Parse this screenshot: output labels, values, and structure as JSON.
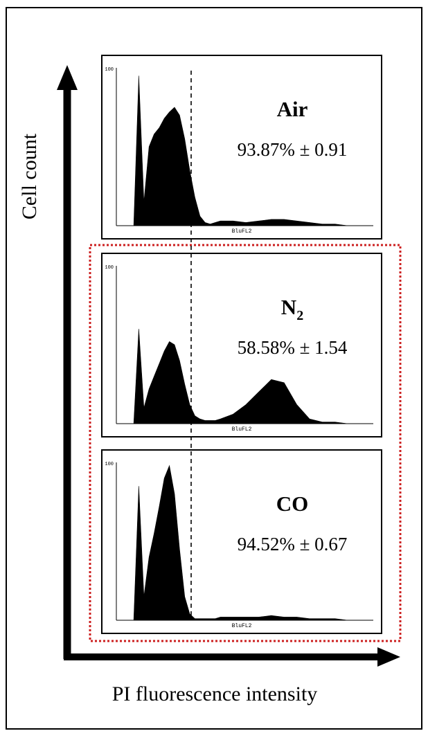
{
  "figure": {
    "y_axis_label": "Cell count",
    "x_axis_label": "PI fluorescence intensity",
    "highlight_color": "#cc1f1f",
    "axis_color": "#000000",
    "fill_color": "#000000"
  },
  "chart_data": [
    {
      "type": "area",
      "title": "Air",
      "title_sub": "",
      "stat": "93.87% ± 0.91",
      "xlabel": "BluFL2",
      "ytick": "100",
      "highlighted": false,
      "x": [
        0.0,
        0.02,
        0.04,
        0.06,
        0.08,
        0.1,
        0.12,
        0.14,
        0.16,
        0.18,
        0.2,
        0.22,
        0.24,
        0.26,
        0.28,
        0.3,
        0.32,
        0.34,
        0.36,
        0.38,
        0.4,
        0.45,
        0.5,
        0.55,
        0.6,
        0.65,
        0.7,
        0.75,
        0.8,
        0.85,
        0.9,
        0.95,
        1.0
      ],
      "y": [
        0,
        0,
        0,
        0,
        0.95,
        0.15,
        0.5,
        0.58,
        0.62,
        0.68,
        0.72,
        0.75,
        0.7,
        0.55,
        0.35,
        0.18,
        0.06,
        0.02,
        0.01,
        0.02,
        0.03,
        0.03,
        0.02,
        0.03,
        0.04,
        0.04,
        0.03,
        0.02,
        0.01,
        0.01,
        0,
        0,
        0
      ]
    },
    {
      "type": "area",
      "title": "N",
      "title_sub": "2",
      "stat": "58.58% ± 1.54",
      "xlabel": "BluFL2",
      "ytick": "100",
      "highlighted": true,
      "x": [
        0.0,
        0.02,
        0.04,
        0.06,
        0.08,
        0.1,
        0.12,
        0.14,
        0.16,
        0.18,
        0.2,
        0.22,
        0.24,
        0.26,
        0.28,
        0.3,
        0.32,
        0.34,
        0.36,
        0.38,
        0.4,
        0.45,
        0.5,
        0.55,
        0.6,
        0.65,
        0.7,
        0.75,
        0.8,
        0.85,
        0.9,
        0.95,
        1.0
      ],
      "y": [
        0,
        0,
        0,
        0,
        0.6,
        0.1,
        0.22,
        0.3,
        0.38,
        0.46,
        0.52,
        0.5,
        0.4,
        0.25,
        0.12,
        0.05,
        0.03,
        0.02,
        0.02,
        0.02,
        0.03,
        0.06,
        0.12,
        0.2,
        0.28,
        0.26,
        0.12,
        0.03,
        0.01,
        0.01,
        0,
        0,
        0
      ]
    },
    {
      "type": "area",
      "title": "CO",
      "title_sub": "",
      "stat": "94.52% ± 0.67",
      "xlabel": "BluFL2",
      "ytick": "100",
      "highlighted": true,
      "x": [
        0.0,
        0.02,
        0.04,
        0.06,
        0.08,
        0.1,
        0.12,
        0.14,
        0.16,
        0.18,
        0.2,
        0.22,
        0.24,
        0.26,
        0.28,
        0.3,
        0.32,
        0.34,
        0.36,
        0.38,
        0.4,
        0.45,
        0.5,
        0.55,
        0.6,
        0.65,
        0.7,
        0.75,
        0.8,
        0.85,
        0.9,
        0.95,
        1.0
      ],
      "y": [
        0,
        0,
        0,
        0,
        0.85,
        0.15,
        0.4,
        0.55,
        0.72,
        0.9,
        0.98,
        0.8,
        0.45,
        0.15,
        0.04,
        0.01,
        0.01,
        0.01,
        0.01,
        0.01,
        0.02,
        0.02,
        0.02,
        0.02,
        0.03,
        0.02,
        0.02,
        0.01,
        0.01,
        0.01,
        0,
        0,
        0
      ]
    }
  ]
}
